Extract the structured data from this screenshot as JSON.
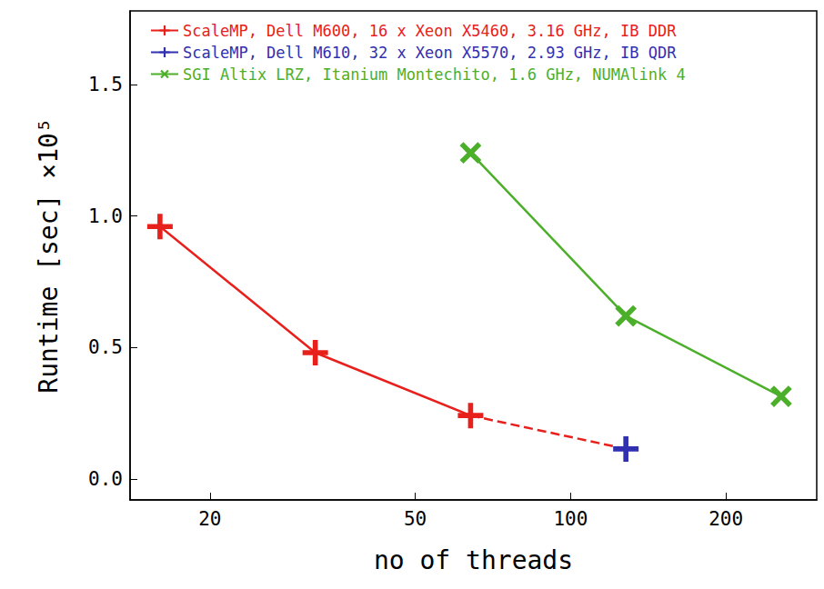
{
  "chart_data": {
    "type": "line",
    "xlabel": "no of threads",
    "ylabel": "Runtime [sec] ×10⁵",
    "log": "x",
    "grid": false,
    "legend": "upper left",
    "xlim": [
      14,
      300
    ],
    "xticks": [
      20,
      50,
      100,
      200
    ],
    "ylim": [
      -0.08,
      1.78
    ],
    "yticks": [
      {
        "value": 0,
        "label": "0.0"
      },
      {
        "value": 0.5,
        "label": "0.5"
      },
      {
        "value": 1,
        "label": "1.0"
      },
      {
        "value": 1.5,
        "label": "1.5"
      }
    ],
    "series": [
      {
        "name": "ScaleMP, Dell M600, 16 x Xeon X5460, 3.16 GHz, IB DDR",
        "color": "#e8201c",
        "marker": "plus",
        "line_style": "solid",
        "x": [
          16,
          32,
          64
        ],
        "values": [
          0.96,
          0.48,
          0.241
        ]
      },
      {
        "color": "#e8201c",
        "marker": "none",
        "line_style": "dashed",
        "x": [
          64,
          128
        ],
        "values": [
          0.241,
          0.114
        ]
      },
      {
        "name": "ScaleMP, Dell M610, 32 x Xeon X5570, 2.93 GHz, IB QDR",
        "color": "#3030b0",
        "marker": "plus",
        "line_style": "solid",
        "x": [
          128
        ],
        "values": [
          0.114
        ]
      },
      {
        "name": "SGI Altix LRZ, Itanium Montechito, 1.6 GHz, NUMAlink 4",
        "color": "#4caf2a",
        "marker": "cross",
        "line_style": "solid",
        "x": [
          64,
          128,
          256
        ],
        "values": [
          1.24,
          0.62,
          0.314
        ]
      }
    ]
  }
}
